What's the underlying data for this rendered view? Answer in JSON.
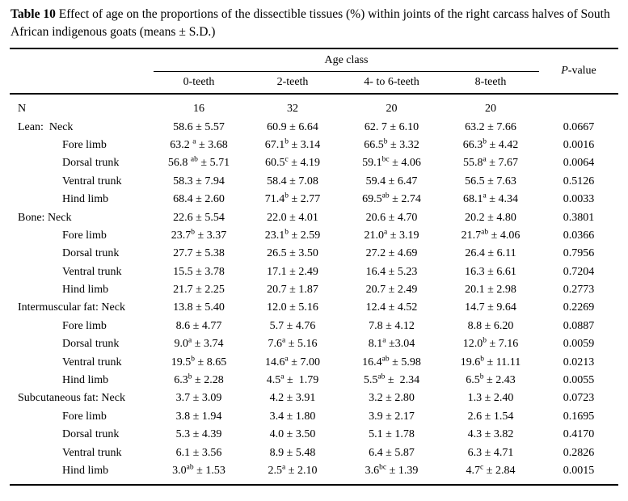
{
  "title": {
    "label": "Table 10",
    "text": " Effect of age on the proportions of the dissectible tissues (%) within joints of the right carcass halves of South African indigenous goats (means ± S.D.)"
  },
  "table": {
    "span_header": "Age class",
    "p_header_italic": "P",
    "p_header_rest": "-value",
    "age_columns": [
      "0-teeth",
      "2-teeth",
      "4- to 6-teeth",
      "8-teeth"
    ],
    "rows": [
      {
        "label": "N",
        "indent": false,
        "cells": [
          "16",
          "32",
          "20",
          "20"
        ],
        "p": ""
      },
      {
        "label": "Lean:  Neck",
        "indent": false,
        "cells": [
          "58.6 ± 5.57",
          "60.9 ± 6.64",
          "62. 7 ± 6.10",
          "63.2 ± 7.66"
        ],
        "p": "0.0667"
      },
      {
        "label": "Fore limb",
        "indent": true,
        "cells": [
          "63.2 ^{a} ± 3.68",
          "67.1^{b} ± 3.14",
          "66.5^{b} ± 3.32",
          "66.3^{b} ± 4.42"
        ],
        "p": "0.0016"
      },
      {
        "label": "Dorsal trunk",
        "indent": true,
        "cells": [
          "56.8 ^{ab} ± 5.71",
          "60.5^{c} ± 4.19",
          "59.1^{bc} ± 4.06",
          "55.8^{a} ± 7.67"
        ],
        "p": "0.0064"
      },
      {
        "label": "Ventral trunk",
        "indent": true,
        "cells": [
          "58.3 ± 7.94",
          "58.4 ± 7.08",
          "59.4 ± 6.47",
          "56.5 ± 7.63"
        ],
        "p": "0.5126"
      },
      {
        "label": "Hind limb",
        "indent": true,
        "cells": [
          "68.4 ± 2.60",
          "71.4^{b} ± 2.77",
          "69.5^{ab} ± 2.74",
          "68.1^{a} ± 4.34"
        ],
        "p": "0.0033"
      },
      {
        "label": "Bone: Neck",
        "indent": false,
        "cells": [
          "22.6 ± 5.54",
          "22.0 ± 4.01",
          "20.6 ± 4.70",
          "20.2 ± 4.80"
        ],
        "p": "0.3801"
      },
      {
        "label": "Fore limb",
        "indent": true,
        "cells": [
          "23.7^{b} ± 3.37",
          "23.1^{b} ± 2.59",
          "21.0^{a} ± 3.19",
          "21.7^{ab} ± 4.06"
        ],
        "p": "0.0366"
      },
      {
        "label": "Dorsal trunk",
        "indent": true,
        "cells": [
          "27.7 ± 5.38",
          "26.5 ± 3.50",
          "27.2 ± 4.69",
          "26.4 ± 6.11"
        ],
        "p": "0.7956"
      },
      {
        "label": "Ventral trunk",
        "indent": true,
        "cells": [
          "15.5 ± 3.78",
          "17.1 ± 2.49",
          "16.4 ± 5.23",
          "16.3 ± 6.61"
        ],
        "p": "0.7204"
      },
      {
        "label": "Hind limb",
        "indent": true,
        "cells": [
          "21.7 ± 2.25",
          "20.7 ± 1.87",
          "20.7 ± 2.49",
          "20.1 ± 2.98"
        ],
        "p": "0.2773"
      },
      {
        "label": "Intermuscular fat: Neck",
        "indent": false,
        "cells": [
          "13.8 ± 5.40",
          "12.0 ± 5.16",
          "12.4 ± 4.52",
          "14.7 ± 9.64"
        ],
        "p": "0.2269"
      },
      {
        "label": "Fore limb",
        "indent": true,
        "cells": [
          "8.6 ± 4.77",
          "5.7 ± 4.76",
          "7.8 ± 4.12",
          "8.8 ± 6.20"
        ],
        "p": "0.0887"
      },
      {
        "label": "Dorsal trunk",
        "indent": true,
        "cells": [
          "9.0^{a} ± 3.74",
          "7.6^{a} ± 5.16",
          "8.1^{a} ±3.04",
          "12.0^{b} ± 7.16"
        ],
        "p": "0.0059"
      },
      {
        "label": "Ventral trunk",
        "indent": true,
        "cells": [
          "19.5^{b} ± 8.65",
          "14.6^{a} ± 7.00",
          "16.4^{ab} ± 5.98",
          "19.6^{b} ± 11.11"
        ],
        "p": "0.0213"
      },
      {
        "label": "Hind limb",
        "indent": true,
        "cells": [
          "6.3^{b} ± 2.28",
          "4.5^{a} ±  1.79",
          "5.5^{ab} ±  2.34",
          "6.5^{b} ± 2.43"
        ],
        "p": "0.0055"
      },
      {
        "label": "Subcutaneous fat: Neck",
        "indent": false,
        "cells": [
          "3.7 ± 3.09",
          "4.2 ± 3.91",
          "3.2 ± 2.80",
          "1.3 ± 2.40"
        ],
        "p": "0.0723"
      },
      {
        "label": "Fore limb",
        "indent": true,
        "cells": [
          "3.8 ± 1.94",
          "3.4 ± 1.80",
          "3.9 ± 2.17",
          "2.6 ± 1.54"
        ],
        "p": "0.1695"
      },
      {
        "label": "Dorsal trunk",
        "indent": true,
        "cells": [
          "5.3 ± 4.39",
          "4.0 ± 3.50",
          "5.1 ± 1.78",
          "4.3 ± 3.82"
        ],
        "p": "0.4170"
      },
      {
        "label": "Ventral trunk",
        "indent": true,
        "cells": [
          "6.1 ± 3.56",
          "8.9 ± 5.48",
          "6.4 ± 5.87",
          "6.3 ± 4.71"
        ],
        "p": "0.2826"
      },
      {
        "label": "Hind limb",
        "indent": true,
        "cells": [
          "3.0^{ab} ± 1.53",
          "2.5^{a} ± 2.10",
          "3.6^{bc} ± 1.39",
          "4.7^{c} ± 2.84"
        ],
        "p": "0.0015"
      }
    ]
  }
}
